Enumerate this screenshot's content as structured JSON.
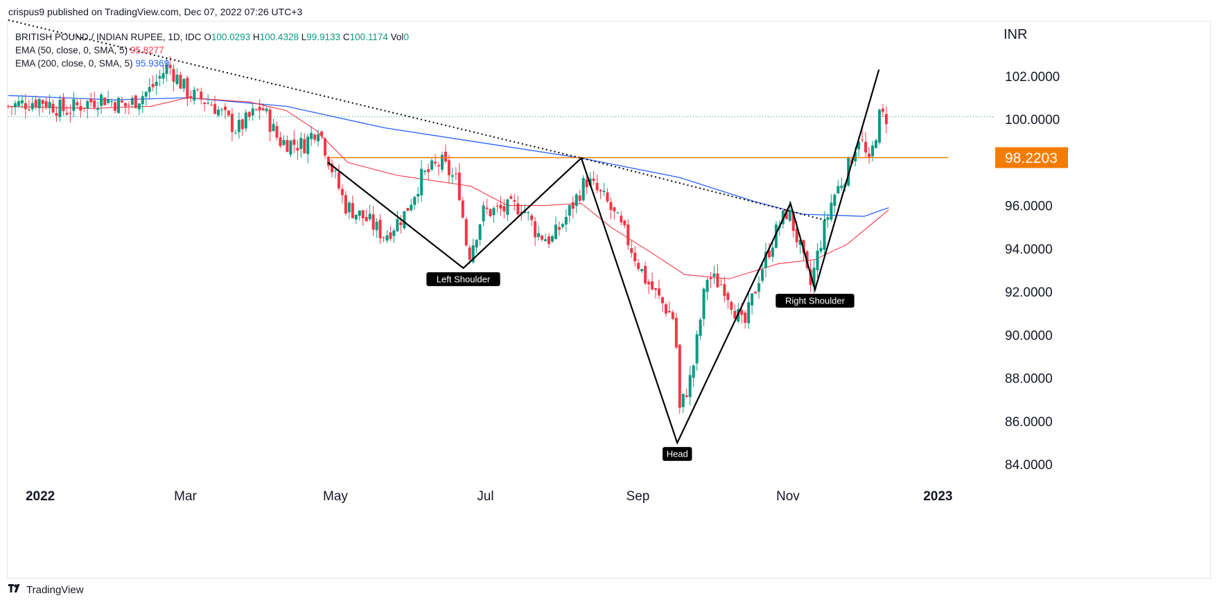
{
  "header": {
    "published_by": "crispus9 published on TradingView.com, Dec 07, 2022 07:26 UTC+3"
  },
  "legend": {
    "symbol": "BRITISH POUND / INDIAN RUPEE, 1D, IDC",
    "o_label": "O",
    "o_value": "100.0293",
    "h_label": "H",
    "h_value": "100.4328",
    "l_label": "L",
    "l_value": "99.9133",
    "c_label": "C",
    "c_value": "100.1174",
    "vol_label": "Vol",
    "vol_value": "0",
    "ema50_label": "EMA (50, close, 0, SMA, 5)",
    "ema50_value": "95.8277",
    "ema200_label": "EMA (200, close, 0, SMA, 5)",
    "ema200_value": "95.9369"
  },
  "footer": {
    "brand": "TradingView",
    "brand_icon": "tradingview-logo-icon"
  },
  "colors": {
    "up": "#089981",
    "down": "#f23645",
    "ema50": "#f23645",
    "ema200": "#2962ff",
    "resistance": "#f57c00",
    "pattern": "#000000"
  },
  "chart_data": {
    "type": "candlestick",
    "currency": "INR",
    "y_ticks": [
      "102.0000",
      "100.0000",
      "96.0000",
      "94.0000",
      "92.0000",
      "90.0000",
      "88.0000",
      "86.0000",
      "84.0000"
    ],
    "y_tick_values": [
      102,
      100,
      96,
      94,
      92,
      90,
      88,
      86,
      84
    ],
    "x_ticks": [
      {
        "label": "2022",
        "day": 0,
        "bold": true
      },
      {
        "label": "Mar",
        "day": 59,
        "bold": false
      },
      {
        "label": "May",
        "day": 120,
        "bold": false
      },
      {
        "label": "Jul",
        "day": 181,
        "bold": false
      },
      {
        "label": "Sep",
        "day": 243,
        "bold": false
      },
      {
        "label": "Nov",
        "day": 304,
        "bold": false
      },
      {
        "label": "2023",
        "day": 365,
        "bold": true
      }
    ],
    "ylim": [
      83.3,
      104.5
    ],
    "xlim_days": [
      -13,
      388
    ],
    "price_marker": {
      "label": "98.2203",
      "value": 98.2203
    },
    "last_close": 100.1174,
    "resistance_line": {
      "value": 98.2203,
      "from_day": 118,
      "to_day": 365
    },
    "trendline_dotted": [
      [
        -13,
        104.6
      ],
      [
        220,
        98.2
      ],
      [
        320,
        95.3
      ]
    ],
    "pattern_path": [
      [
        117,
        98.0
      ],
      [
        172,
        93.1
      ],
      [
        220,
        98.2
      ],
      [
        259,
        85.0
      ],
      [
        305,
        96.1
      ],
      [
        315,
        92.1
      ],
      [
        341,
        102.3
      ]
    ],
    "annotations": [
      {
        "label": "Left Shoulder",
        "day": 172,
        "value": 93.1
      },
      {
        "label": "Head",
        "day": 259,
        "value": 85.0
      },
      {
        "label": "Right Shoulder",
        "day": 315,
        "value": 92.1
      }
    ],
    "ema200_points": [
      [
        -13,
        101.1
      ],
      [
        30,
        100.9
      ],
      [
        60,
        101.0
      ],
      [
        100,
        100.6
      ],
      [
        140,
        99.6
      ],
      [
        180,
        98.9
      ],
      [
        220,
        98.2
      ],
      [
        260,
        97.3
      ],
      [
        290,
        96.2
      ],
      [
        310,
        95.6
      ],
      [
        335,
        95.5
      ],
      [
        345,
        95.9
      ]
    ],
    "ema50_points": [
      [
        -13,
        100.6
      ],
      [
        20,
        100.5
      ],
      [
        45,
        100.6
      ],
      [
        60,
        101.0
      ],
      [
        85,
        100.8
      ],
      [
        100,
        100.4
      ],
      [
        112,
        99.5
      ],
      [
        125,
        98.0
      ],
      [
        145,
        97.4
      ],
      [
        175,
        96.9
      ],
      [
        190,
        96.0
      ],
      [
        205,
        96.0
      ],
      [
        220,
        96.1
      ],
      [
        232,
        95.0
      ],
      [
        250,
        93.7
      ],
      [
        262,
        92.8
      ],
      [
        280,
        92.6
      ],
      [
        300,
        93.3
      ],
      [
        315,
        93.5
      ],
      [
        328,
        94.2
      ],
      [
        345,
        95.8
      ]
    ],
    "close_path": [
      [
        -13,
        100.6
      ],
      [
        0,
        100.9
      ],
      [
        10,
        100.4
      ],
      [
        25,
        101.0
      ],
      [
        35,
        100.6
      ],
      [
        45,
        101.4
      ],
      [
        52,
        102.5
      ],
      [
        60,
        101.2
      ],
      [
        70,
        100.7
      ],
      [
        80,
        99.5
      ],
      [
        90,
        100.6
      ],
      [
        97,
        99.0
      ],
      [
        107,
        98.8
      ],
      [
        113,
        99.7
      ],
      [
        118,
        97.9
      ],
      [
        124,
        96.0
      ],
      [
        132,
        95.4
      ],
      [
        140,
        94.6
      ],
      [
        148,
        95.6
      ],
      [
        155,
        97.3
      ],
      [
        163,
        98.0
      ],
      [
        170,
        97.0
      ],
      [
        174,
        93.6
      ],
      [
        180,
        95.7
      ],
      [
        188,
        95.8
      ],
      [
        196,
        96.0
      ],
      [
        202,
        94.7
      ],
      [
        208,
        94.4
      ],
      [
        214,
        95.5
      ],
      [
        222,
        97.2
      ],
      [
        230,
        96.2
      ],
      [
        238,
        94.6
      ],
      [
        246,
        92.6
      ],
      [
        252,
        91.6
      ],
      [
        258,
        90.7
      ],
      [
        260,
        86.5
      ],
      [
        265,
        88.2
      ],
      [
        271,
        92.7
      ],
      [
        278,
        92.3
      ],
      [
        286,
        90.3
      ],
      [
        293,
        93.0
      ],
      [
        300,
        95.0
      ],
      [
        304,
        95.8
      ],
      [
        309,
        94.0
      ],
      [
        313,
        92.2
      ],
      [
        317,
        94.2
      ],
      [
        322,
        96.3
      ],
      [
        328,
        97.6
      ],
      [
        333,
        99.3
      ],
      [
        337,
        97.8
      ],
      [
        341,
        100.1
      ],
      [
        345,
        100.1
      ]
    ]
  }
}
